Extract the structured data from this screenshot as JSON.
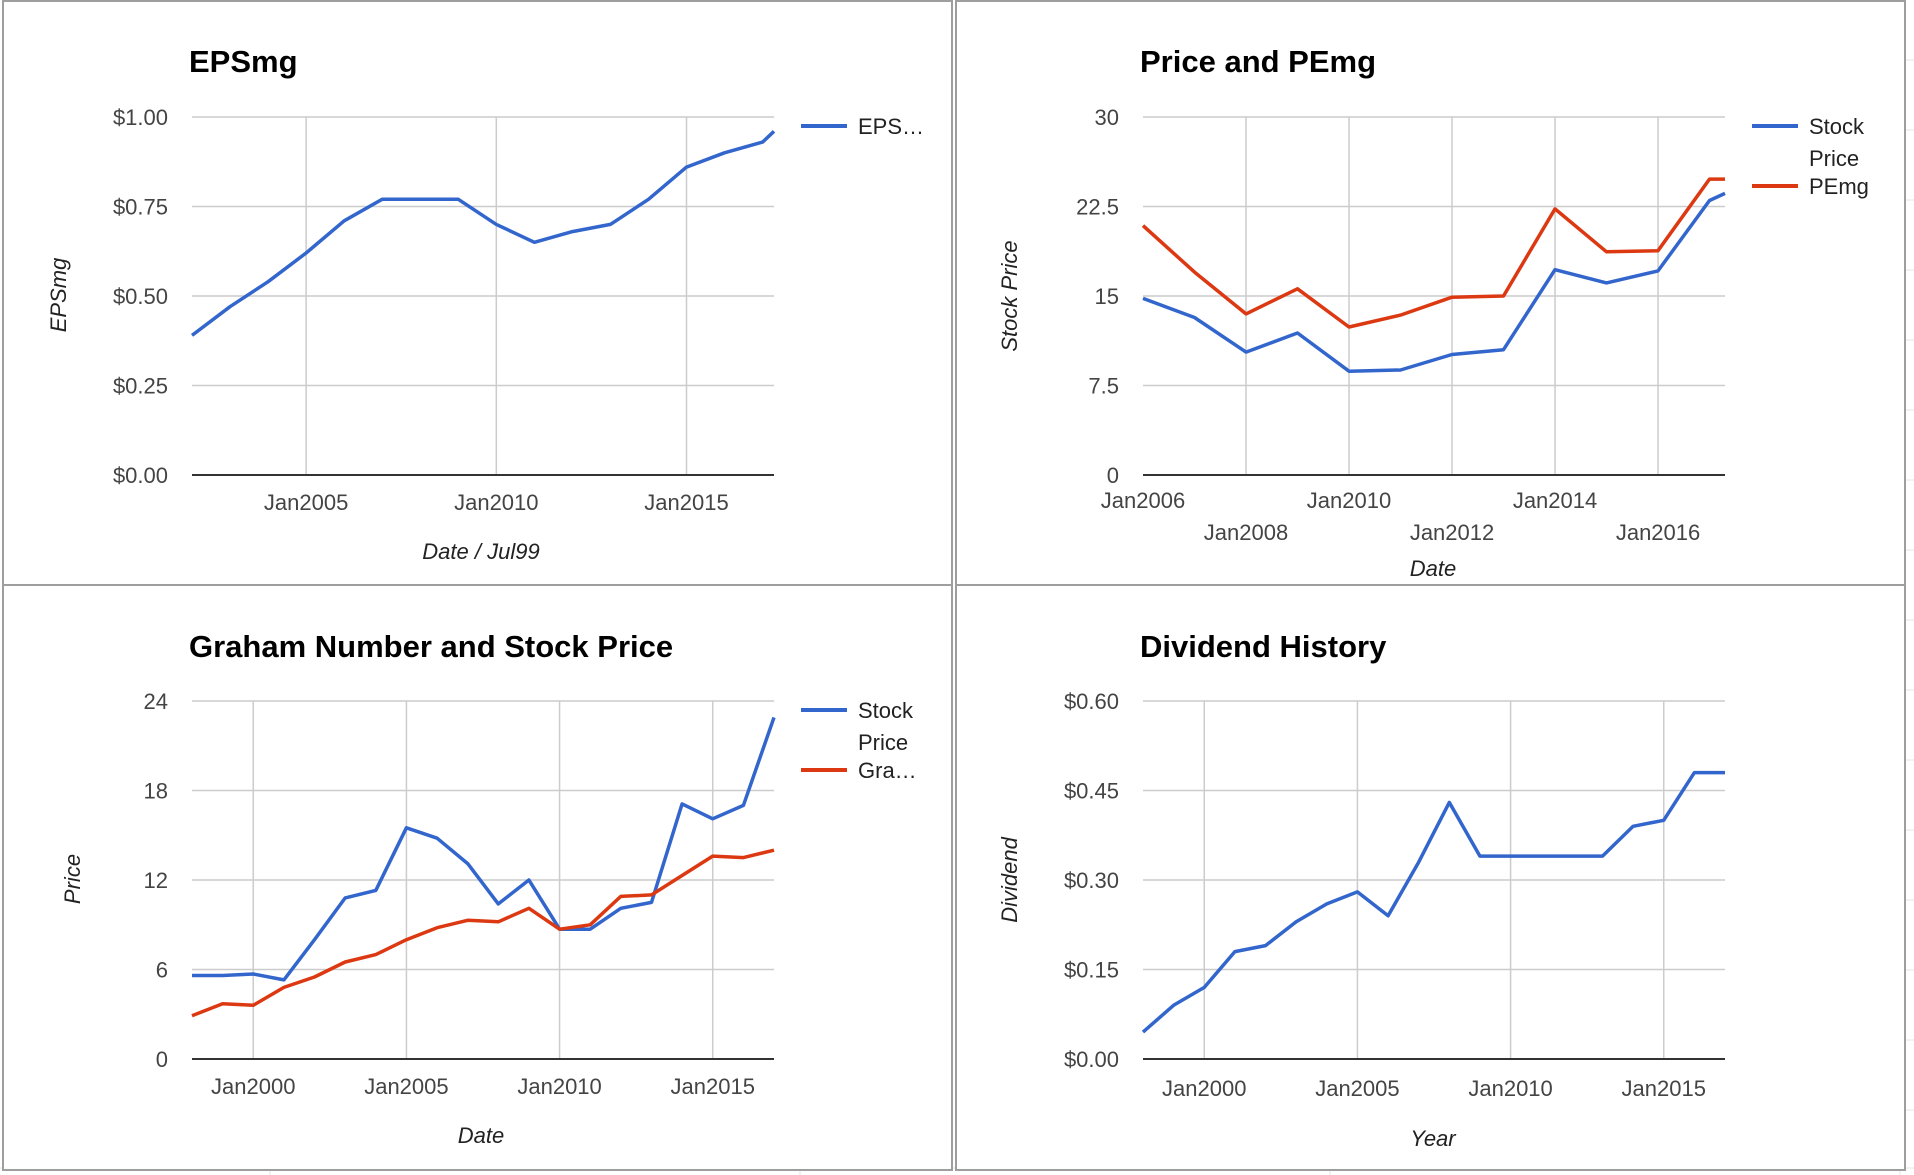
{
  "colors": {
    "series_blue": "#3366cc",
    "series_red": "#dc3912",
    "grid": "#cccccc",
    "axis": "#333333",
    "panel_border": "#9e9e9e"
  },
  "chart_data": [
    {
      "type": "line",
      "title": "EPSmg",
      "xlabel": "Date / Jul99",
      "ylabel": "EPSmg",
      "x_ticks": [
        "Jan2005",
        "Jan2010",
        "Jan2015"
      ],
      "y_ticks": [
        "$0.00",
        "$0.25",
        "$0.50",
        "$0.75",
        "$1.00"
      ],
      "xlim": [
        2002.0,
        2017.3
      ],
      "ylim": [
        0,
        1.0
      ],
      "legend": {
        "placement": "right",
        "entries": [
          "EPS…"
        ]
      },
      "grid": true,
      "series": [
        {
          "name": "EPS…",
          "color": "#3366cc",
          "x": [
            2002.0,
            2003.0,
            2004.0,
            2005.0,
            2006.0,
            2007.0,
            2008.0,
            2009.0,
            2010.0,
            2011.0,
            2012.0,
            2013.0,
            2014.0,
            2015.0,
            2016.0,
            2017.0,
            2017.3
          ],
          "y": [
            0.39,
            0.47,
            0.54,
            0.62,
            0.71,
            0.77,
            0.77,
            0.77,
            0.7,
            0.65,
            0.68,
            0.7,
            0.77,
            0.86,
            0.9,
            0.93,
            0.96
          ]
        }
      ]
    },
    {
      "type": "line",
      "title": "Price and PEmg",
      "xlabel": "Date",
      "ylabel": "Stock Price",
      "x_ticks_row1": [
        "Jan2006",
        "Jan2010",
        "Jan2014"
      ],
      "x_ticks_row2": [
        "Jan2008",
        "Jan2012",
        "Jan2016"
      ],
      "y_ticks": [
        "0",
        "7.5",
        "15",
        "22.5",
        "30"
      ],
      "xlim": [
        2006.0,
        2017.3
      ],
      "ylim": [
        0,
        30
      ],
      "legend": {
        "placement": "right",
        "entries": [
          [
            "Stock",
            "Price"
          ],
          [
            "PEmg"
          ]
        ]
      },
      "grid": true,
      "series": [
        {
          "name": "Stock Price",
          "color": "#3366cc",
          "x": [
            2006.0,
            2007.0,
            2008.0,
            2009.0,
            2010.0,
            2011.0,
            2012.0,
            2013.0,
            2014.0,
            2015.0,
            2016.0,
            2017.0,
            2017.3
          ],
          "y": [
            14.8,
            13.2,
            10.3,
            11.9,
            8.7,
            8.8,
            10.1,
            10.5,
            17.2,
            16.1,
            17.1,
            23.0,
            23.6
          ]
        },
        {
          "name": "PEmg",
          "color": "#dc3912",
          "x": [
            2006.0,
            2007.0,
            2008.0,
            2009.0,
            2010.0,
            2011.0,
            2012.0,
            2013.0,
            2014.0,
            2015.0,
            2016.0,
            2017.0,
            2017.3
          ],
          "y": [
            20.9,
            17.0,
            13.5,
            15.6,
            12.4,
            13.4,
            14.9,
            15.0,
            22.3,
            18.7,
            18.8,
            24.8,
            24.8
          ]
        }
      ]
    },
    {
      "type": "line",
      "title": "Graham Number and Stock Price",
      "xlabel": "Date",
      "ylabel": "Price",
      "x_ticks": [
        "Jan2000",
        "Jan2005",
        "Jan2010",
        "Jan2015"
      ],
      "y_ticks": [
        "0",
        "6",
        "12",
        "18",
        "24"
      ],
      "xlim": [
        1998.0,
        2017.0
      ],
      "ylim": [
        0,
        24
      ],
      "legend": {
        "placement": "right",
        "entries": [
          [
            "Stock",
            "Price"
          ],
          [
            "Gra…"
          ]
        ]
      },
      "grid": true,
      "series": [
        {
          "name": "Stock Price",
          "color": "#3366cc",
          "x": [
            1998.0,
            1999.0,
            2000.0,
            2001.0,
            2002.0,
            2003.0,
            2004.0,
            2005.0,
            2006.0,
            2007.0,
            2008.0,
            2009.0,
            2010.0,
            2011.0,
            2012.0,
            2013.0,
            2014.0,
            2015.0,
            2016.0,
            2017.0
          ],
          "y": [
            5.6,
            5.6,
            5.7,
            5.3,
            8.0,
            10.8,
            11.3,
            15.5,
            14.8,
            13.1,
            10.4,
            12.0,
            8.7,
            8.7,
            10.1,
            10.5,
            17.1,
            16.1,
            17.0,
            22.9
          ]
        },
        {
          "name": "Gra…",
          "color": "#dc3912",
          "x": [
            1998.0,
            1999.0,
            2000.0,
            2001.0,
            2002.0,
            2003.0,
            2004.0,
            2005.0,
            2006.0,
            2007.0,
            2008.0,
            2009.0,
            2010.0,
            2011.0,
            2012.0,
            2013.0,
            2014.0,
            2015.0,
            2016.0,
            2017.0
          ],
          "y": [
            2.9,
            3.7,
            3.6,
            4.8,
            5.5,
            6.5,
            7.0,
            8.0,
            8.8,
            9.3,
            9.2,
            10.1,
            8.7,
            9.0,
            10.9,
            11.0,
            12.3,
            13.6,
            13.5,
            14.0
          ]
        }
      ]
    },
    {
      "type": "line",
      "title": "Dividend History",
      "xlabel": "Year",
      "ylabel": "Dividend",
      "x_ticks": [
        "Jan2000",
        "Jan2005",
        "Jan2010",
        "Jan2015"
      ],
      "y_ticks": [
        "$0.00",
        "$0.15",
        "$0.30",
        "$0.45",
        "$0.60"
      ],
      "xlim": [
        1998.0,
        2017.0
      ],
      "ylim": [
        0,
        0.6
      ],
      "legend": {
        "placement": "none",
        "entries": []
      },
      "grid": true,
      "series": [
        {
          "name": "",
          "color": "#3366cc",
          "x": [
            1998.0,
            1999.0,
            2000.0,
            2001.0,
            2002.0,
            2003.0,
            2004.0,
            2005.0,
            2006.0,
            2007.0,
            2008.0,
            2009.0,
            2010.0,
            2011.0,
            2012.0,
            2013.0,
            2014.0,
            2015.0,
            2016.0,
            2017.0
          ],
          "y": [
            0.045,
            0.09,
            0.12,
            0.18,
            0.19,
            0.23,
            0.26,
            0.28,
            0.24,
            0.33,
            0.43,
            0.34,
            0.34,
            0.34,
            0.34,
            0.34,
            0.39,
            0.4,
            0.48,
            0.48
          ]
        }
      ]
    }
  ]
}
